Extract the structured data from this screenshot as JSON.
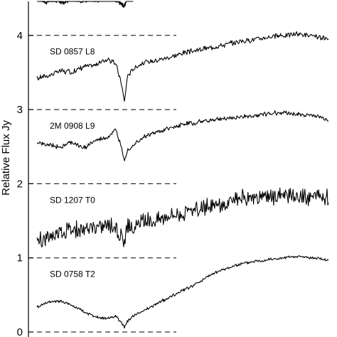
{
  "chart_data": {
    "type": "line",
    "ylabel": "Relative Flux Jy",
    "y_ticks": [
      "0",
      "1",
      "2",
      "3",
      "4"
    ],
    "ylim": [
      0,
      4.55
    ],
    "grid": false,
    "offset_reference_lines": [
      0,
      1,
      2,
      3,
      4
    ],
    "series": [
      {
        "name": "SD 0857 L8",
        "x": [
          0,
          0.04,
          0.08,
          0.12,
          0.16,
          0.2,
          0.24,
          0.27,
          0.29,
          0.3,
          0.31,
          0.33,
          0.36,
          0.4,
          0.45,
          0.5,
          0.55,
          0.6,
          0.65,
          0.7,
          0.75,
          0.8,
          0.85,
          0.9,
          0.95,
          1.0
        ],
        "y": [
          3.42,
          3.46,
          3.52,
          3.5,
          3.58,
          3.6,
          3.68,
          3.62,
          3.35,
          3.1,
          3.45,
          3.55,
          3.62,
          3.66,
          3.7,
          3.76,
          3.8,
          3.84,
          3.88,
          3.92,
          3.95,
          3.98,
          4.0,
          4.02,
          3.98,
          3.95
        ]
      },
      {
        "name": "2M 0908 L9",
        "x": [
          0,
          0.04,
          0.08,
          0.12,
          0.16,
          0.2,
          0.24,
          0.27,
          0.29,
          0.3,
          0.31,
          0.33,
          0.36,
          0.4,
          0.45,
          0.5,
          0.55,
          0.6,
          0.65,
          0.7,
          0.75,
          0.8,
          0.85,
          0.9,
          0.95,
          1.0
        ],
        "y": [
          2.55,
          2.52,
          2.5,
          2.56,
          2.48,
          2.58,
          2.62,
          2.72,
          2.5,
          2.32,
          2.45,
          2.52,
          2.62,
          2.68,
          2.74,
          2.8,
          2.83,
          2.86,
          2.88,
          2.9,
          2.92,
          2.95,
          2.96,
          2.93,
          2.92,
          2.86
        ]
      },
      {
        "name": "SD 1207 T0",
        "x": [
          0,
          0.04,
          0.08,
          0.12,
          0.16,
          0.2,
          0.24,
          0.27,
          0.29,
          0.3,
          0.31,
          0.33,
          0.36,
          0.4,
          0.45,
          0.5,
          0.55,
          0.6,
          0.65,
          0.7,
          0.75,
          0.8,
          0.85,
          0.9,
          0.95,
          1.0
        ],
        "y": [
          1.2,
          1.3,
          1.35,
          1.4,
          1.38,
          1.42,
          1.45,
          1.4,
          1.3,
          1.2,
          1.45,
          1.38,
          1.48,
          1.5,
          1.58,
          1.6,
          1.65,
          1.7,
          1.72,
          1.8,
          1.78,
          1.82,
          1.85,
          1.8,
          1.84,
          1.82
        ]
      },
      {
        "name": "SD 0758 T2",
        "x": [
          0,
          0.04,
          0.08,
          0.12,
          0.16,
          0.2,
          0.24,
          0.27,
          0.29,
          0.3,
          0.31,
          0.33,
          0.36,
          0.4,
          0.45,
          0.5,
          0.55,
          0.6,
          0.65,
          0.7,
          0.75,
          0.8,
          0.85,
          0.9,
          0.95,
          1.0
        ],
        "y": [
          0.34,
          0.4,
          0.42,
          0.36,
          0.28,
          0.2,
          0.18,
          0.22,
          0.12,
          0.06,
          0.14,
          0.22,
          0.28,
          0.36,
          0.46,
          0.56,
          0.66,
          0.78,
          0.86,
          0.92,
          0.96,
          0.98,
          1.0,
          1.02,
          1.0,
          0.96
        ]
      },
      {
        "name": "",
        "x": [
          0,
          0.03,
          0.06,
          0.09,
          0.12,
          0.15,
          0.18,
          0.21,
          0.24,
          0.27,
          0.29,
          0.3,
          0.31,
          0.33
        ],
        "y": [
          4.5,
          4.45,
          4.48,
          4.44,
          4.5,
          4.46,
          4.49,
          4.47,
          4.52,
          4.48,
          4.42,
          4.4,
          4.5,
          4.52
        ]
      }
    ]
  }
}
